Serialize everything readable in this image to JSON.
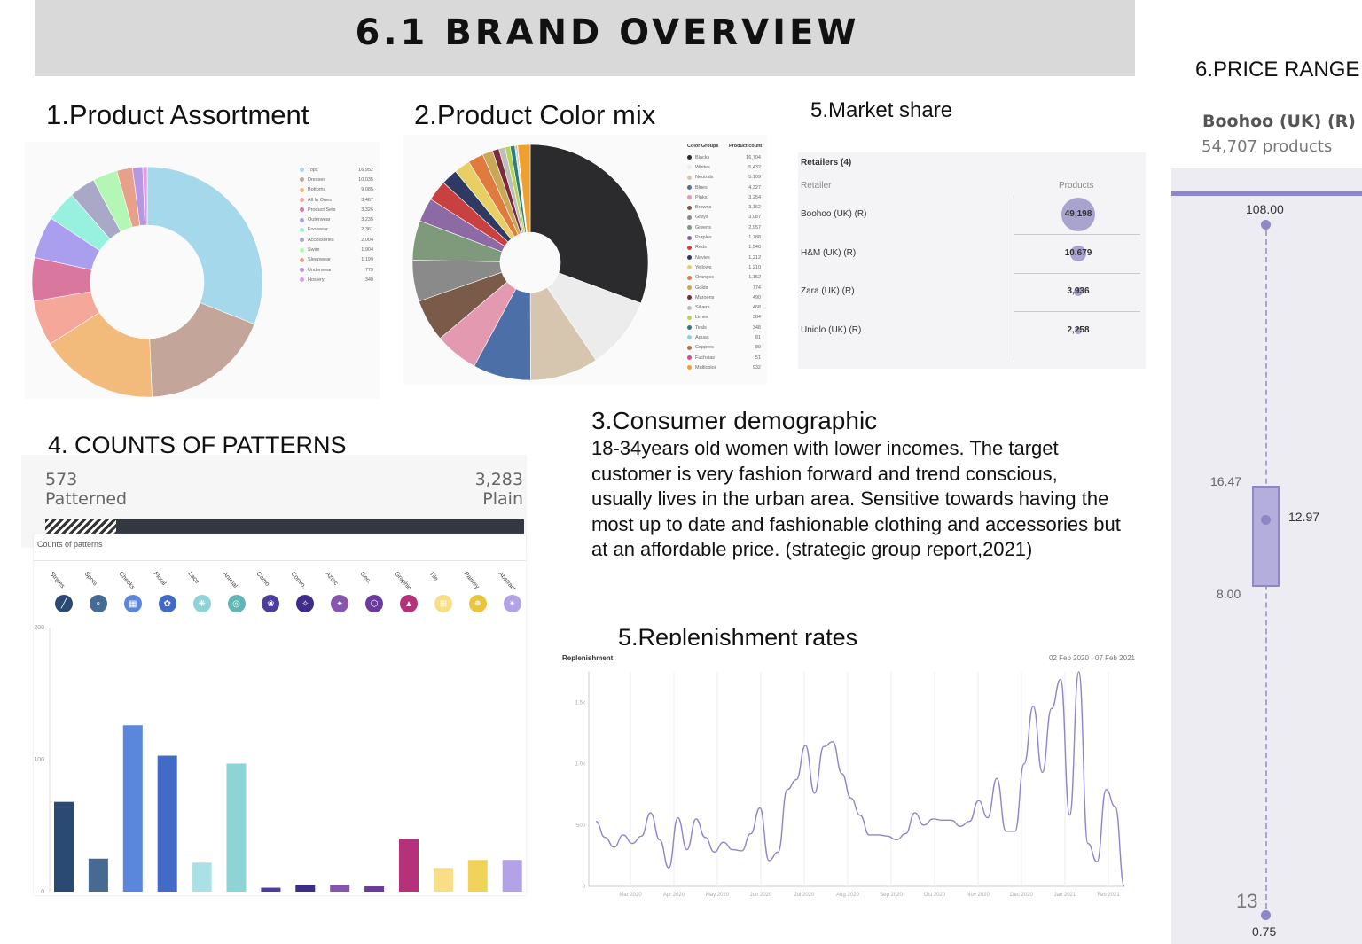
{
  "header": {
    "title": "6.1 BRAND OVERVIEW"
  },
  "sections": {
    "assortment": "1.Product Assortment",
    "color_mix": "2.Product Color mix",
    "market_share": "5.Market share",
    "price_range": "6.PRICE RANGE",
    "patterns": "4. COUNTS OF PATTERNS",
    "demographic": "3.Consumer demographic",
    "replenishment": "5.Replenishment rates"
  },
  "demographic_text": "18-34years old women with lower incomes. The target customer is very fashion forward and trend conscious, usually lives in the urban area. Sensitive towards having the most up to date and fashionable clothing and accessories but at an affordable price. (strategic group report,2021)",
  "market_share": {
    "title": "Retailers (4)",
    "col_retailer": "Retailer",
    "col_products": "Products",
    "rows": [
      {
        "name": "Boohoo (UK) (R)",
        "value": "49,198",
        "raw": 49198
      },
      {
        "name": "H&M (UK) (R)",
        "value": "10,679",
        "raw": 10679
      },
      {
        "name": "Zara (UK) (R)",
        "value": "3,936",
        "raw": 3936
      },
      {
        "name": "Uniqlo (UK) (R)",
        "value": "2,258",
        "raw": 2258
      }
    ],
    "bubble_color": "#a9a3cf"
  },
  "price": {
    "brand": "Boohoo (UK) (R)",
    "products": "54,707 products",
    "max": "108.00",
    "q3": "16.47",
    "median": "12.97",
    "q1": "8.00",
    "low_label": "13",
    "min": "0.75",
    "accent": "#8d86c9"
  },
  "patterns": {
    "patterned_count": "573",
    "patterned_label": "Patterned",
    "plain_count": "3,283",
    "plain_label": "Plain",
    "panel_title": "Counts of patterns"
  },
  "chart_data": [
    {
      "type": "pie",
      "name": "Product Assortment",
      "donut": true,
      "categories": [
        "Tops",
        "Dresses",
        "Bottoms",
        "All In Ones",
        "Product Sets",
        "Outerwear",
        "Footwear",
        "Accessories",
        "Swim",
        "Sleepwear",
        "Underwear",
        "Hosiery"
      ],
      "values": [
        16952,
        10035,
        9085,
        3487,
        3326,
        3235,
        2361,
        2004,
        1904,
        1199,
        779,
        340
      ],
      "labels": [
        "16,952",
        "10,035",
        "9,085",
        "3,487",
        "3,326",
        "3,235",
        "2,361",
        "2,004",
        "1,904",
        "1,199",
        "779",
        "340"
      ],
      "colors": [
        "#a5d8ea",
        "#c4a59a",
        "#f2bb7b",
        "#f5a79a",
        "#d9779f",
        "#a99fee",
        "#97f1de",
        "#a9a8c7",
        "#b4f7b4",
        "#e8a08a",
        "#b697e0",
        "#e29be8"
      ]
    },
    {
      "type": "pie",
      "name": "Product Color mix",
      "donut": true,
      "legend_header": [
        "Color Groups",
        "Product count"
      ],
      "categories": [
        "Blacks",
        "Whites",
        "Neutrals",
        "Blues",
        "Pinks",
        "Browns",
        "Greys",
        "Greens",
        "Purples",
        "Reds",
        "Navies",
        "Yellows",
        "Oranges",
        "Golds",
        "Maroons",
        "Silvers",
        "Limes",
        "Teals",
        "Aquas",
        "Coppers",
        "Fuchsias",
        "Multicolor"
      ],
      "values": [
        16704,
        5432,
        5109,
        4327,
        3254,
        3162,
        3087,
        2957,
        1788,
        1540,
        1212,
        1210,
        1152,
        774,
        490,
        468,
        384,
        348,
        81,
        80,
        51,
        932
      ],
      "labels": [
        "16,704",
        "5,432",
        "5,109",
        "4,327",
        "3,254",
        "3,162",
        "3,087",
        "2,957",
        "1,788",
        "1,540",
        "1,212",
        "1,210",
        "1,152",
        "774",
        "490",
        "468",
        "384",
        "348",
        "81",
        "80",
        "51",
        "932"
      ],
      "colors": [
        "#2b2b2e",
        "#ececec",
        "#d6c6b0",
        "#4c6fa8",
        "#e39ab1",
        "#7a5a48",
        "#8a8a8a",
        "#7e9a7b",
        "#8d6aa3",
        "#c94040",
        "#2f3a63",
        "#e8cf63",
        "#e07a3f",
        "#c9a857",
        "#7a2c3b",
        "#bdbdbd",
        "#b7d35a",
        "#2f7d78",
        "#8fd3d8",
        "#b07050",
        "#d04c9e",
        "#f0a030"
      ]
    },
    {
      "type": "bar",
      "name": "Counts of patterns",
      "categories": [
        "Stripes",
        "Spots",
        "Checks",
        "Floral",
        "Lace",
        "Animal",
        "Camo",
        "Convo.",
        "Aztec",
        "Geo.",
        "Graphic",
        "Tile",
        "Paisley",
        "Abstract"
      ],
      "values": [
        68,
        25,
        126,
        103,
        22,
        97,
        3,
        5,
        5,
        4,
        40,
        18,
        24,
        24
      ],
      "ylim": [
        0,
        200
      ],
      "yticks": [
        0,
        100,
        200
      ],
      "colors": [
        "#2b4a73",
        "#466a92",
        "#5a86dc",
        "#426bc7",
        "#a9e1e6",
        "#8ed3d6",
        "#4a3e9a",
        "#3f2c8a",
        "#8555b0",
        "#6a3a9e",
        "#b43279",
        "#f8df86",
        "#f1d35a",
        "#b3a2e6"
      ],
      "icon_colors": [
        "#2b4a73",
        "#466a92",
        "#5a86dc",
        "#426bc7",
        "#8ed3d6",
        "#5fb6b4",
        "#4a3e9a",
        "#3f2c8a",
        "#8555b0",
        "#6a3a9e",
        "#b43279",
        "#f8df86",
        "#e8c53a",
        "#b3a2e6"
      ]
    },
    {
      "type": "line",
      "name": "Replenishment",
      "title": "Replenishment",
      "date_range": "02 Feb 2020 - 07 Feb 2021",
      "x_labels": [
        "Mar 2020",
        "Apr 2020",
        "May 2020",
        "Jun 2020",
        "Jul 2020",
        "Aug 2020",
        "Sep 2020",
        "Oct 2020",
        "Nov 2020",
        "Dec 2020",
        "Jan 2021",
        "Feb 2021"
      ],
      "y_labels": [
        "0",
        "500",
        "1.0k",
        "1.5k"
      ],
      "ylim": [
        0,
        1750
      ],
      "color": "#8d86c9",
      "values": [
        530,
        400,
        320,
        420,
        350,
        410,
        600,
        380,
        150,
        560,
        300,
        550,
        400,
        280,
        360,
        300,
        290,
        430,
        640,
        210,
        280,
        790,
        870,
        1150,
        760,
        1140,
        1180,
        920,
        720,
        580,
        420,
        420,
        410,
        380,
        430,
        600,
        500,
        550,
        540,
        540,
        490,
        530,
        700,
        560,
        880,
        450,
        450,
        1000,
        1470,
        930,
        1450,
        1690,
        580,
        1750,
        350,
        200,
        790,
        650,
        0
      ]
    }
  ]
}
